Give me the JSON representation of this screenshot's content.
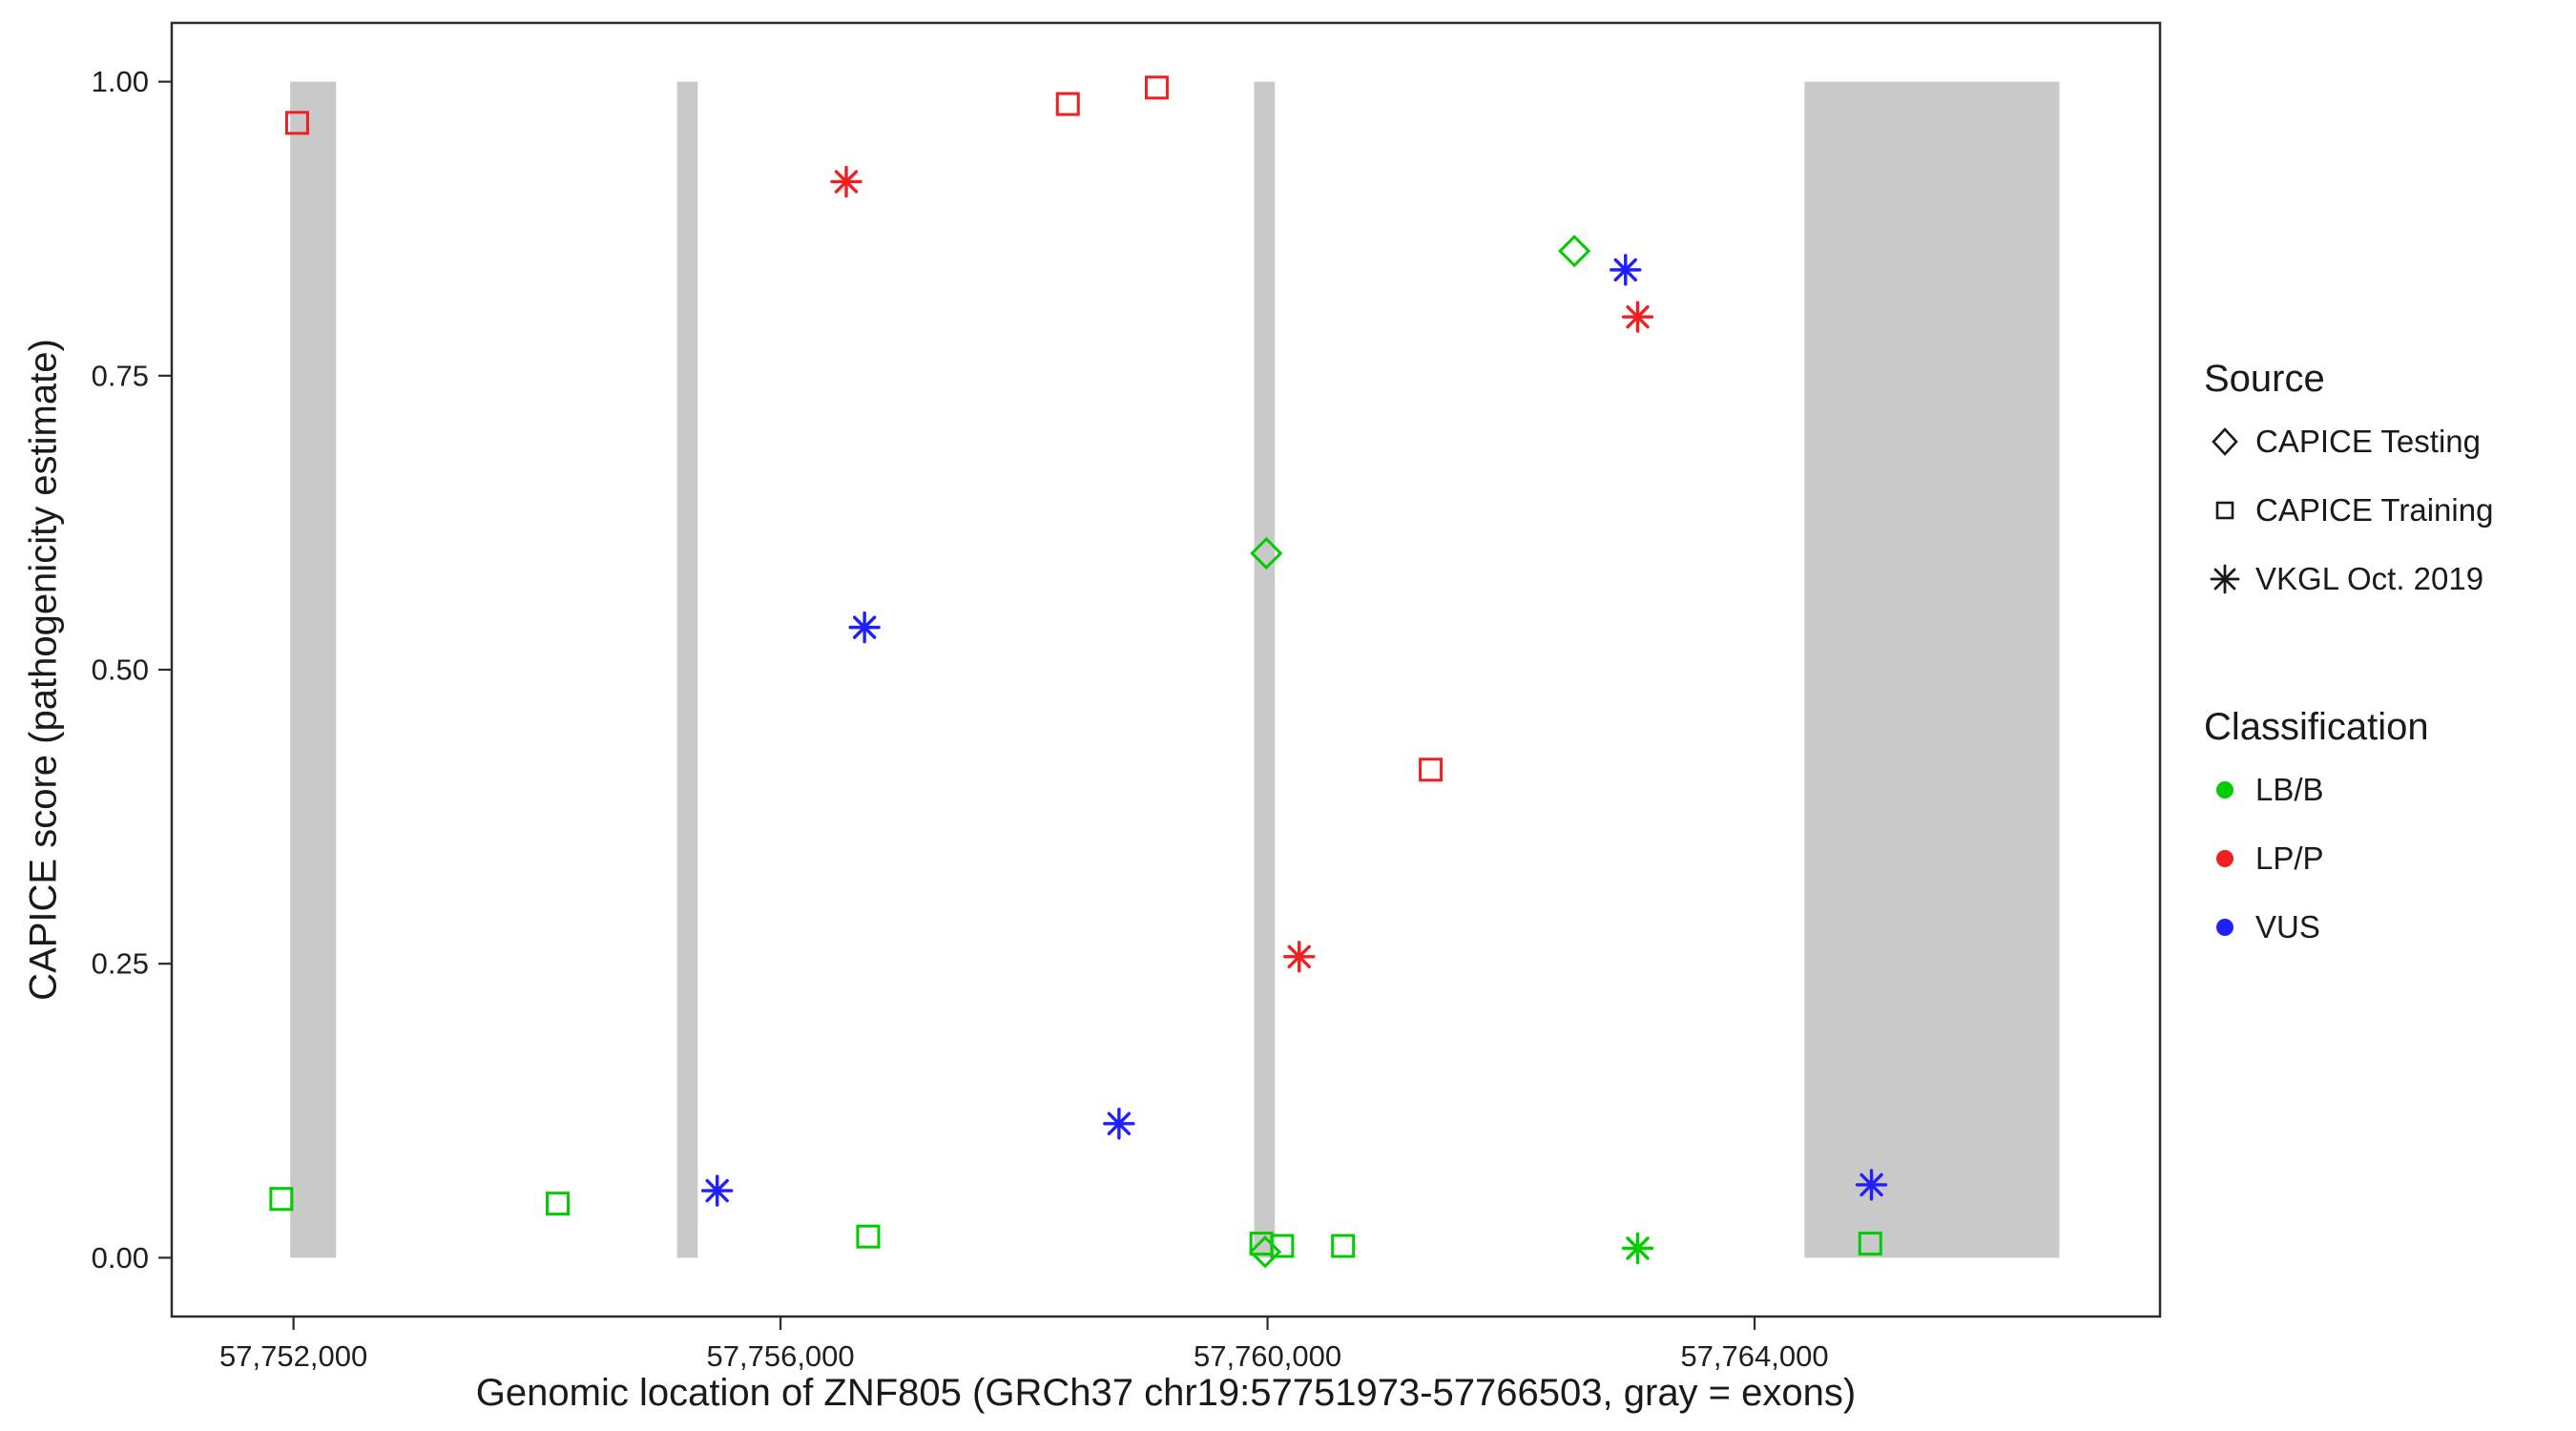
{
  "chart_data": {
    "type": "scatter",
    "title": "",
    "xlabel": "Genomic location of ZNF805 (GRCh37 chr19:57751973-57766503, gray = exons)",
    "ylabel": "CAPICE score (pathogenicity estimate)",
    "xlim": [
      57751000,
      57767330
    ],
    "ylim": [
      -0.05,
      1.05
    ],
    "grid": "off",
    "x_ticks": [
      {
        "value": 57752000,
        "label": "57,752,000"
      },
      {
        "value": 57756000,
        "label": "57,756,000"
      },
      {
        "value": 57760000,
        "label": "57,760,000"
      },
      {
        "value": 57764000,
        "label": "57,764,000"
      }
    ],
    "y_ticks": [
      {
        "value": 0.0,
        "label": "0.00"
      },
      {
        "value": 0.25,
        "label": "0.25"
      },
      {
        "value": 0.5,
        "label": "0.50"
      },
      {
        "value": 0.75,
        "label": "0.75"
      },
      {
        "value": 1.0,
        "label": "1.00"
      }
    ],
    "exon_color": "#c9c9c9",
    "exons": [
      {
        "start": 57751973,
        "end": 57752350
      },
      {
        "start": 57755150,
        "end": 57755320
      },
      {
        "start": 57759890,
        "end": 57760060
      },
      {
        "start": 57764410,
        "end": 57766503
      }
    ],
    "points": [
      {
        "x": 57752030,
        "y": 0.965,
        "classification": "LP/P",
        "source": "CAPICE Training"
      },
      {
        "x": 57751900,
        "y": 0.05,
        "classification": "LB/B",
        "source": "CAPICE Training"
      },
      {
        "x": 57754170,
        "y": 0.046,
        "classification": "LB/B",
        "source": "CAPICE Training"
      },
      {
        "x": 57755480,
        "y": 0.057,
        "classification": "VUS",
        "source": "VKGL Oct. 2019"
      },
      {
        "x": 57756540,
        "y": 0.915,
        "classification": "LP/P",
        "source": "VKGL Oct. 2019"
      },
      {
        "x": 57756690,
        "y": 0.536,
        "classification": "VUS",
        "source": "VKGL Oct. 2019"
      },
      {
        "x": 57756720,
        "y": 0.018,
        "classification": "LB/B",
        "source": "CAPICE Training"
      },
      {
        "x": 57758360,
        "y": 0.981,
        "classification": "LP/P",
        "source": "CAPICE Training"
      },
      {
        "x": 57758780,
        "y": 0.114,
        "classification": "VUS",
        "source": "VKGL Oct. 2019"
      },
      {
        "x": 57759090,
        "y": 0.995,
        "classification": "LP/P",
        "source": "CAPICE Training"
      },
      {
        "x": 57759990,
        "y": 0.599,
        "classification": "LB/B",
        "source": "CAPICE Testing"
      },
      {
        "x": 57759950,
        "y": 0.012,
        "classification": "LB/B",
        "source": "CAPICE Training"
      },
      {
        "x": 57759980,
        "y": 0.005,
        "classification": "LB/B",
        "source": "CAPICE Testing"
      },
      {
        "x": 57760120,
        "y": 0.01,
        "classification": "LB/B",
        "source": "CAPICE Training"
      },
      {
        "x": 57760260,
        "y": 0.256,
        "classification": "LP/P",
        "source": "VKGL Oct. 2019"
      },
      {
        "x": 57760620,
        "y": 0.01,
        "classification": "LB/B",
        "source": "CAPICE Training"
      },
      {
        "x": 57761340,
        "y": 0.415,
        "classification": "LP/P",
        "source": "CAPICE Training"
      },
      {
        "x": 57762520,
        "y": 0.856,
        "classification": "LB/B",
        "source": "CAPICE Testing"
      },
      {
        "x": 57762940,
        "y": 0.84,
        "classification": "VUS",
        "source": "VKGL Oct. 2019"
      },
      {
        "x": 57763040,
        "y": 0.8,
        "classification": "LP/P",
        "source": "VKGL Oct. 2019"
      },
      {
        "x": 57763040,
        "y": 0.008,
        "classification": "LB/B",
        "source": "VKGL Oct. 2019"
      },
      {
        "x": 57764960,
        "y": 0.062,
        "classification": "VUS",
        "source": "VKGL Oct. 2019"
      },
      {
        "x": 57764950,
        "y": 0.012,
        "classification": "LB/B",
        "source": "CAPICE Training"
      }
    ],
    "legend": {
      "source_title": "Source",
      "source_items": [
        {
          "label": "CAPICE Testing",
          "shape": "diamond"
        },
        {
          "label": "CAPICE Training",
          "shape": "square"
        },
        {
          "label": "VKGL Oct. 2019",
          "shape": "asterisk"
        }
      ],
      "class_title": "Classification",
      "class_items": [
        {
          "label": "LB/B",
          "color": "#00cc00"
        },
        {
          "label": "LP/P",
          "color": "#f02020"
        },
        {
          "label": "VUS",
          "color": "#2020ff"
        }
      ]
    }
  }
}
